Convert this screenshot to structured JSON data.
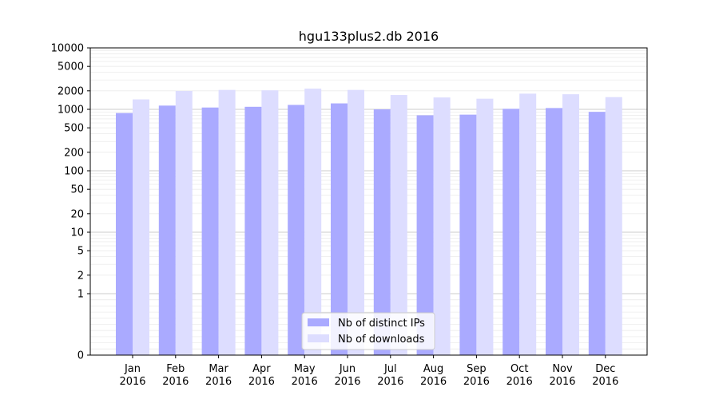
{
  "chart_data": {
    "type": "bar",
    "title": "hgu133plus2.db 2016",
    "y_scale": "symlog",
    "ylim": [
      0,
      10000
    ],
    "y_ticks": [
      0,
      1,
      2,
      5,
      10,
      20,
      50,
      100,
      200,
      500,
      1000,
      2000,
      5000,
      10000
    ],
    "y_tick_labels": [
      "0",
      "1",
      "2",
      "5",
      "10",
      "20",
      "50",
      "100",
      "200",
      "500",
      "1000",
      "2000",
      "5000",
      "10000"
    ],
    "categories": [
      "Jan\n2016",
      "Feb\n2016",
      "Mar\n2016",
      "Apr\n2016",
      "May\n2016",
      "Jun\n2016",
      "Jul\n2016",
      "Aug\n2016",
      "Sep\n2016",
      "Oct\n2016",
      "Nov\n2016",
      "Dec\n2016"
    ],
    "series": [
      {
        "name": "Nb of distinct IPs",
        "color": "#aaaaff",
        "values": [
          870,
          1150,
          1070,
          1100,
          1180,
          1250,
          1000,
          800,
          820,
          1020,
          1050,
          910
        ]
      },
      {
        "name": "Nb of downloads",
        "color": "#ddddff",
        "values": [
          1450,
          1990,
          2070,
          2040,
          2170,
          2070,
          1710,
          1560,
          1490,
          1800,
          1760,
          1580
        ]
      }
    ],
    "grid": true,
    "legend_position": "lower-center"
  }
}
